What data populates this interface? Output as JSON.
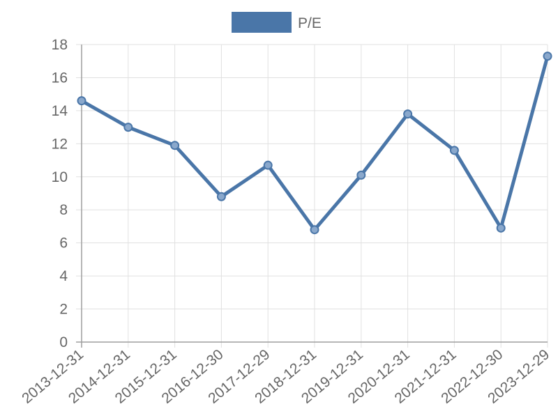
{
  "chart_data": {
    "type": "line",
    "categories": [
      "2013-12-31",
      "2014-12-31",
      "2015-12-31",
      "2016-12-30",
      "2017-12-29",
      "2018-12-31",
      "2019-12-31",
      "2020-12-31",
      "2021-12-31",
      "2022-12-30",
      "2023-12-29"
    ],
    "series": [
      {
        "name": "P/E",
        "values": [
          14.6,
          13.0,
          11.9,
          8.8,
          10.7,
          6.8,
          10.1,
          13.8,
          11.6,
          6.9,
          17.3
        ],
        "color": "#4a76a8"
      }
    ],
    "yticks": [
      "0",
      "2",
      "4",
      "6",
      "8",
      "10",
      "12",
      "14",
      "16",
      "18"
    ],
    "ylim": [
      0,
      18
    ],
    "grid": true,
    "legend_position": "top-center"
  }
}
